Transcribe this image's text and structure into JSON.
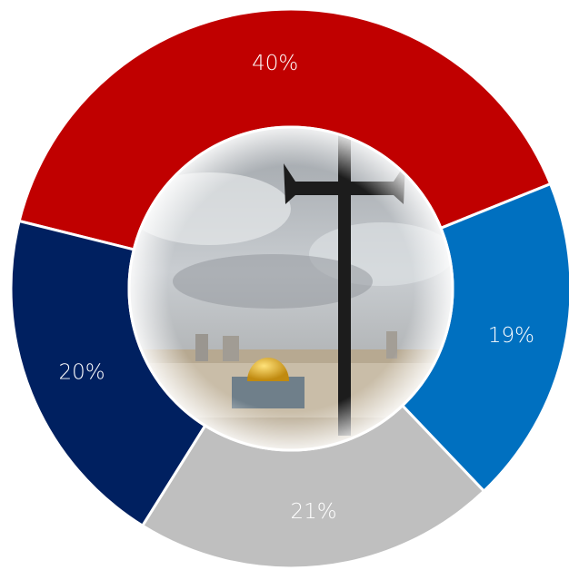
{
  "chart_data": {
    "type": "pie",
    "donut": true,
    "values": [
      40,
      19,
      21,
      20
    ],
    "value_labels": [
      "40%",
      "19%",
      "21%",
      "20%"
    ],
    "colors": [
      "#c00000",
      "#0070c0",
      "#bfbfbf",
      "#002060"
    ]
  }
}
